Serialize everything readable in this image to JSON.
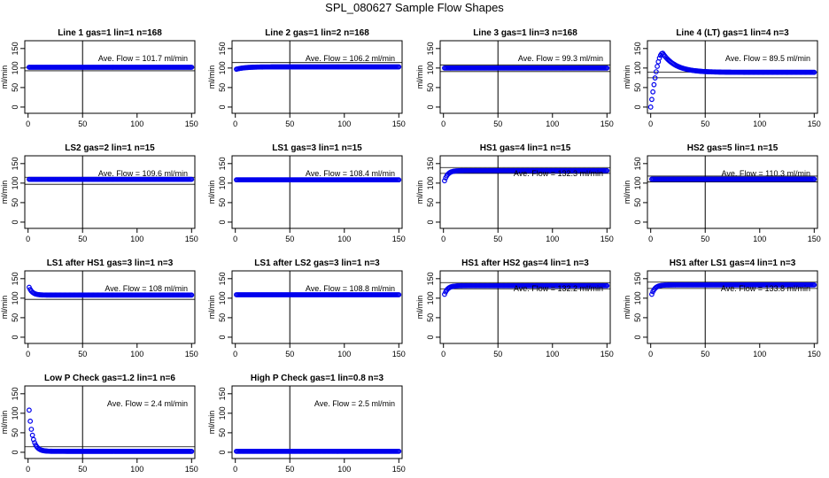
{
  "figure_title": "SPL_080627  Sample Flow Shapes",
  "colors": {
    "points": "#0000ee",
    "axes": "#000000"
  },
  "chart_data": [
    {
      "type": "scatter",
      "title": "Line 1 gas=1 lin=1 n=168",
      "ylabel": "ml/min",
      "annotation": "Ave. Flow = 101.7  ml/min",
      "xlim": [
        0,
        150
      ],
      "ylim": [
        0,
        150
      ],
      "xticks": [
        "0",
        "50",
        "100",
        "150"
      ],
      "yticks": [
        "0",
        "50",
        "100",
        "150"
      ],
      "vline_x": 50,
      "hlines": [
        101.7,
        93
      ],
      "curve": {
        "mode": "flat",
        "start": 1,
        "end": 150,
        "level": 102
      }
    },
    {
      "type": "scatter",
      "title": "Line 2 gas=1 lin=2 n=168",
      "ylabel": "ml/min",
      "annotation": "Ave. Flow = 106.2  ml/min",
      "xlim": [
        0,
        150
      ],
      "ylim": [
        0,
        150
      ],
      "xticks": [
        "0",
        "50",
        "100",
        "150"
      ],
      "yticks": [
        "0",
        "50",
        "100",
        "150"
      ],
      "vline_x": 50,
      "hlines": [
        114
      ],
      "curve": {
        "mode": "rise",
        "start": 1,
        "end": 150,
        "y0": 97,
        "level": 103,
        "k": 8
      }
    },
    {
      "type": "scatter",
      "title": "Line 3 gas=1 lin=3 n=168",
      "ylabel": "ml/min",
      "annotation": "Ave. Flow = 99.3  ml/min",
      "xlim": [
        0,
        150
      ],
      "ylim": [
        0,
        150
      ],
      "xticks": [
        "0",
        "50",
        "100",
        "150"
      ],
      "yticks": [
        "0",
        "50",
        "100",
        "150"
      ],
      "vline_x": 50,
      "hlines": [
        108,
        91
      ],
      "curve": {
        "mode": "flat",
        "start": 1,
        "end": 150,
        "level": 100
      }
    },
    {
      "type": "scatter",
      "title": "Line 4 (LT) gas=1 lin=4 n=3",
      "ylabel": "ml/min",
      "annotation": "Ave. Flow = 89.5  ml/min",
      "xlim": [
        0,
        150
      ],
      "ylim": [
        0,
        150
      ],
      "xticks": [
        "0",
        "50",
        "100",
        "150"
      ],
      "yticks": [
        "0",
        "50",
        "100",
        "150"
      ],
      "vline_x": 50,
      "hlines": [
        89.5,
        75
      ],
      "curve": {
        "mode": "bump",
        "start": 0,
        "end": 150,
        "peak_x": 11,
        "peak_y": 138,
        "level": 89
      }
    },
    {
      "type": "scatter",
      "title": "LS2 gas=2 lin=1 n=15",
      "ylabel": "ml/min",
      "annotation": "Ave. Flow = 109.6  ml/min",
      "xlim": [
        0,
        150
      ],
      "ylim": [
        0,
        150
      ],
      "xticks": [
        "0",
        "50",
        "100",
        "150"
      ],
      "yticks": [
        "0",
        "50",
        "100",
        "150"
      ],
      "vline_x": 50,
      "hlines": [
        115,
        97
      ],
      "curve": {
        "mode": "flat",
        "start": 1,
        "end": 150,
        "level": 109.6
      }
    },
    {
      "type": "scatter",
      "title": "LS1 gas=3 lin=1 n=15",
      "ylabel": "ml/min",
      "annotation": "Ave. Flow = 108.4  ml/min",
      "xlim": [
        0,
        150
      ],
      "ylim": [
        0,
        150
      ],
      "xticks": [
        "0",
        "50",
        "100",
        "150"
      ],
      "yticks": [
        "0",
        "50",
        "100",
        "150"
      ],
      "vline_x": 50,
      "hlines": [],
      "curve": {
        "mode": "flat",
        "start": 1,
        "end": 150,
        "level": 108.4
      }
    },
    {
      "type": "scatter",
      "title": "HS1 gas=4 lin=1 n=15",
      "ylabel": "ml/min",
      "annotation": "Ave. Flow = 132.3  ml/min",
      "xlim": [
        0,
        150
      ],
      "ylim": [
        0,
        150
      ],
      "xticks": [
        "0",
        "50",
        "100",
        "150"
      ],
      "yticks": [
        "0",
        "50",
        "100",
        "150"
      ],
      "vline_x": 50,
      "hlines": [
        140,
        125
      ],
      "curve": {
        "mode": "rise",
        "start": 1,
        "end": 150,
        "y0": 106,
        "level": 132,
        "k": 3
      }
    },
    {
      "type": "scatter",
      "title": "HS2 gas=5 lin=1 n=15",
      "ylabel": "ml/min",
      "annotation": "Ave. Flow = 110.3  ml/min",
      "xlim": [
        0,
        150
      ],
      "ylim": [
        0,
        150
      ],
      "xticks": [
        "0",
        "50",
        "100",
        "150"
      ],
      "yticks": [
        "0",
        "50",
        "100",
        "150"
      ],
      "vline_x": 50,
      "hlines": [
        118,
        103
      ],
      "curve": {
        "mode": "flat",
        "start": 1,
        "end": 150,
        "level": 110
      }
    },
    {
      "type": "scatter",
      "title": "LS1 after HS1 gas=3 lin=1 n=3",
      "ylabel": "ml/min",
      "annotation": "Ave. Flow = 108  ml/min",
      "xlim": [
        0,
        150
      ],
      "ylim": [
        0,
        150
      ],
      "xticks": [
        "0",
        "50",
        "100",
        "150"
      ],
      "yticks": [
        "0",
        "50",
        "100",
        "150"
      ],
      "vline_x": 50,
      "hlines": [
        97
      ],
      "curve": {
        "mode": "decay",
        "start": 1,
        "end": 150,
        "y0": 128,
        "level": 108,
        "k": 3
      }
    },
    {
      "type": "scatter",
      "title": "LS1 after LS2 gas=3 lin=1 n=3",
      "ylabel": "ml/min",
      "annotation": "Ave. Flow = 108.8  ml/min",
      "xlim": [
        0,
        150
      ],
      "ylim": [
        0,
        150
      ],
      "xticks": [
        "0",
        "50",
        "100",
        "150"
      ],
      "yticks": [
        "0",
        "50",
        "100",
        "150"
      ],
      "vline_x": 50,
      "hlines": [],
      "curve": {
        "mode": "flat",
        "start": 1,
        "end": 150,
        "level": 108.8
      }
    },
    {
      "type": "scatter",
      "title": "HS1 after HS2 gas=4 lin=1 n=3",
      "ylabel": "ml/min",
      "annotation": "Ave. Flow = 132.2  ml/min",
      "xlim": [
        0,
        150
      ],
      "ylim": [
        0,
        150
      ],
      "xticks": [
        "0",
        "50",
        "100",
        "150"
      ],
      "yticks": [
        "0",
        "50",
        "100",
        "150"
      ],
      "vline_x": 50,
      "hlines": [
        140,
        124
      ],
      "curve": {
        "mode": "rise",
        "start": 1,
        "end": 150,
        "y0": 110,
        "level": 132,
        "k": 3
      }
    },
    {
      "type": "scatter",
      "title": "HS1 after LS1 gas=4 lin=1 n=3",
      "ylabel": "ml/min",
      "annotation": "Ave. Flow = 133.8  ml/min",
      "xlim": [
        0,
        150
      ],
      "ylim": [
        0,
        150
      ],
      "xticks": [
        "0",
        "50",
        "100",
        "150"
      ],
      "yticks": [
        "0",
        "50",
        "100",
        "150"
      ],
      "vline_x": 50,
      "hlines": [
        141,
        125
      ],
      "curve": {
        "mode": "rise",
        "start": 1,
        "end": 150,
        "y0": 110,
        "level": 134,
        "k": 3
      }
    },
    {
      "type": "scatter",
      "title": "Low P Check gas=1.2 lin=1 n=6",
      "ylabel": "ml/min",
      "annotation": "Ave. Flow = 2.4  ml/min",
      "xlim": [
        0,
        150
      ],
      "ylim": [
        0,
        150
      ],
      "xticks": [
        "0",
        "50",
        "100",
        "150"
      ],
      "yticks": [
        "0",
        "50",
        "100",
        "150"
      ],
      "vline_x": 50,
      "hlines": [
        14
      ],
      "curve": {
        "mode": "decay",
        "start": 1,
        "end": 150,
        "y0": 108,
        "level": 2.4,
        "k": 3.2
      }
    },
    {
      "type": "scatter",
      "title": "High P Check gas=1 lin=0.8 n=3",
      "ylabel": "ml/min",
      "annotation": "Ave. Flow = 2.5  ml/min",
      "xlim": [
        0,
        150
      ],
      "ylim": [
        0,
        150
      ],
      "xticks": [
        "0",
        "50",
        "100",
        "150"
      ],
      "yticks": [
        "0",
        "50",
        "100",
        "150"
      ],
      "vline_x": 50,
      "hlines": [],
      "curve": {
        "mode": "flat",
        "start": 1,
        "end": 150,
        "level": 2.5
      }
    }
  ]
}
